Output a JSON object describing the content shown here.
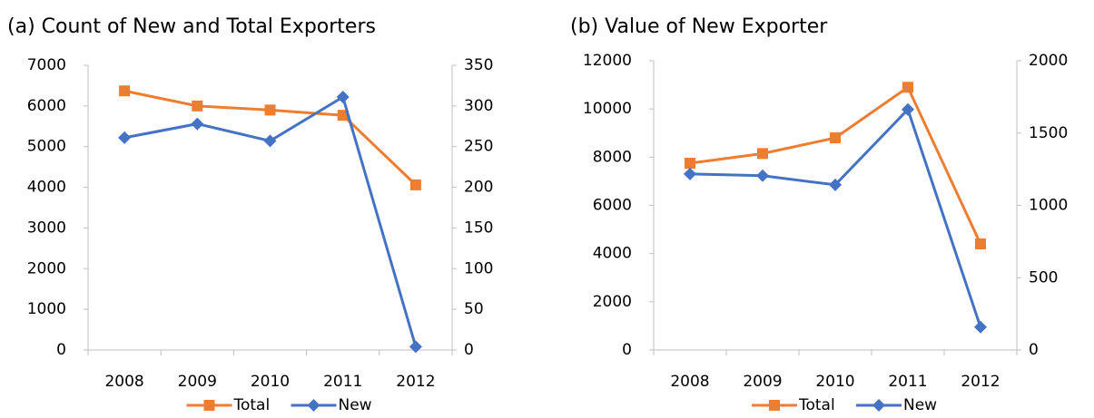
{
  "chart_data": [
    {
      "type": "line",
      "title": "(a) Count of New and Total Exporters",
      "categories": [
        "2008",
        "2009",
        "2010",
        "2011",
        "2012"
      ],
      "series": [
        {
          "name": "Total",
          "color": "#ed7d31",
          "marker": "square",
          "axis": "y",
          "values": [
            6370,
            6000,
            5900,
            5770,
            4060
          ]
        },
        {
          "name": "New",
          "color": "#4472c4",
          "marker": "diamond",
          "axis": "y2",
          "values": [
            261,
            278,
            257,
            311,
            4
          ]
        }
      ],
      "ylim": [
        0,
        7000
      ],
      "yticks": [
        0,
        1000,
        2000,
        3000,
        4000,
        5000,
        6000,
        7000
      ],
      "y2lim": [
        0,
        350
      ],
      "y2ticks": [
        0,
        50,
        100,
        150,
        200,
        250,
        300,
        350
      ]
    },
    {
      "type": "line",
      "title": "(b) Value of New Exporter",
      "categories": [
        "2008",
        "2009",
        "2010",
        "2011",
        "2012"
      ],
      "series": [
        {
          "name": "Total",
          "color": "#ed7d31",
          "marker": "square",
          "axis": "y",
          "values": [
            7750,
            8150,
            8800,
            10900,
            4400
          ]
        },
        {
          "name": "New",
          "color": "#4472c4",
          "marker": "diamond",
          "axis": "y2",
          "values": [
            1217,
            1205,
            1142,
            1663,
            158
          ]
        }
      ],
      "ylim": [
        0,
        12000
      ],
      "yticks": [
        0,
        2000,
        4000,
        6000,
        8000,
        10000,
        12000
      ],
      "y2lim": [
        0,
        2000
      ],
      "y2ticks": [
        0,
        500,
        1000,
        1500,
        2000
      ]
    }
  ]
}
